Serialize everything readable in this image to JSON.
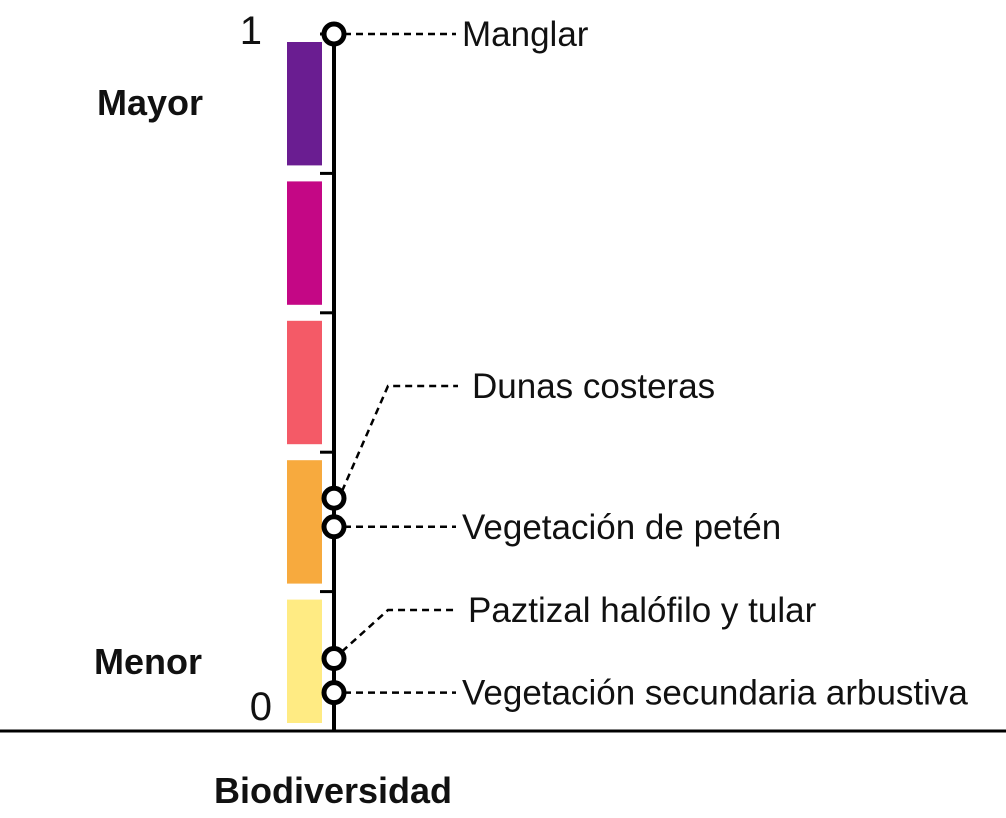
{
  "axis_title": "Biodiversidad",
  "scale": {
    "max_label": "1",
    "min_label": "0",
    "high_label": "Mayor",
    "low_label": "Menor"
  },
  "color_bands": [
    {
      "from": 0.0,
      "to": 0.2,
      "color": "#FFEB83"
    },
    {
      "from": 0.2,
      "to": 0.4,
      "color": "#F7AA3E"
    },
    {
      "from": 0.4,
      "to": 0.6,
      "color": "#F45A67"
    },
    {
      "from": 0.6,
      "to": 0.8,
      "color": "#C40785"
    },
    {
      "from": 0.8,
      "to": 1.0,
      "color": "#6A1D91"
    }
  ],
  "vegetation": [
    {
      "label": "Manglar",
      "value": 1.0
    },
    {
      "label": "Dunas costeras",
      "value": 0.334
    },
    {
      "label": "Vegetación de petén",
      "value": 0.293
    },
    {
      "label": "Paztizal halófilo y tular",
      "value": 0.104
    },
    {
      "label": "Vegetación secundaria arbustiva",
      "value": 0.055
    }
  ]
}
